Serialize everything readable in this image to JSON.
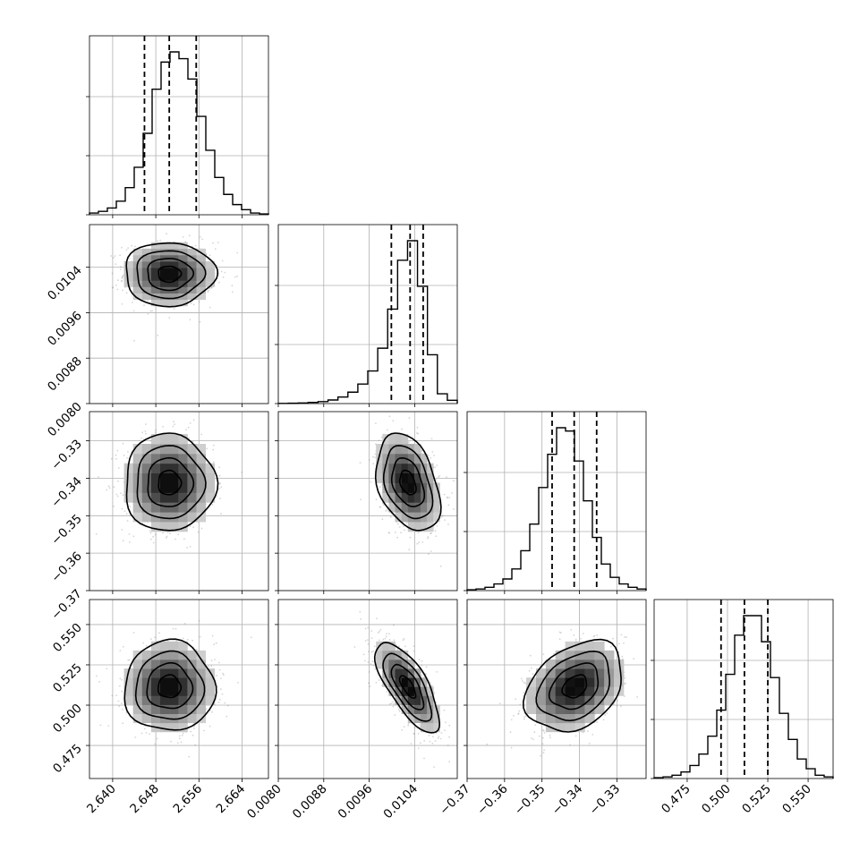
{
  "chart_data": {
    "type": "corner",
    "parameters": [
      {
        "range": [
          2.6357,
          2.6689
        ],
        "ticks": [
          2.64,
          2.648,
          2.656,
          2.664
        ],
        "tick_labels": [
          "2.640",
          "2.648",
          "2.656",
          "2.664"
        ],
        "mean": 2.6505,
        "sd": 0.0042,
        "quantiles": [
          2.6459,
          2.6505,
          2.6555
        ]
      },
      {
        "range": [
          0.008,
          0.01115
        ],
        "ticks": [
          0.008,
          0.0088,
          0.0096,
          0.0104
        ],
        "tick_labels": [
          "0.0080",
          "0.0088",
          "0.0096",
          "0.0104"
        ],
        "mean": 0.01028,
        "sd": 0.00028,
        "quantiles": [
          0.00999,
          0.01032,
          0.01055
        ]
      },
      {
        "range": [
          -0.37,
          -0.3222
        ],
        "ticks": [
          -0.37,
          -0.36,
          -0.35,
          -0.34,
          -0.33
        ],
        "tick_labels": [
          "−0.37",
          "−0.36",
          "−0.35",
          "−0.34",
          "−0.33"
        ],
        "mean": -0.3412,
        "sd": 0.0065,
        "quantiles": [
          -0.3473,
          -0.3414,
          -0.3354
        ]
      },
      {
        "range": [
          0.4545,
          0.5655
        ],
        "ticks": [
          0.475,
          0.5,
          0.525,
          0.55
        ],
        "tick_labels": [
          "0.475",
          "0.500",
          "0.525",
          "0.550"
        ],
        "mean": 0.5115,
        "sd": 0.014,
        "quantiles": [
          0.496,
          0.5105,
          0.525
        ]
      }
    ],
    "histograms": [
      [
        1,
        2,
        4,
        8,
        16,
        28,
        48,
        74,
        90,
        96,
        92,
        80,
        58,
        38,
        22,
        12,
        6,
        3,
        1,
        0.5
      ],
      [
        0.1,
        0.2,
        0.4,
        0.7,
        1.2,
        2.2,
        4,
        7,
        12,
        20,
        34,
        58,
        88,
        100,
        72,
        30,
        6,
        2
      ],
      [
        0.5,
        1,
        2,
        4,
        7,
        13,
        24,
        40,
        62,
        82,
        98,
        96,
        78,
        54,
        32,
        16,
        8,
        4,
        2,
        1
      ],
      [
        0.5,
        1,
        2,
        4,
        8,
        15,
        26,
        42,
        64,
        88,
        100,
        100,
        84,
        62,
        40,
        24,
        12,
        6,
        2,
        1
      ]
    ],
    "correlations": {
      "1-0": 0.0,
      "2-0": 0.0,
      "2-1": -0.35,
      "3-0": 0.0,
      "3-1": -0.72,
      "3-2": 0.32
    },
    "contour_levels_sigma": [
      0.5,
      1.0,
      1.5,
      2.0
    ]
  }
}
